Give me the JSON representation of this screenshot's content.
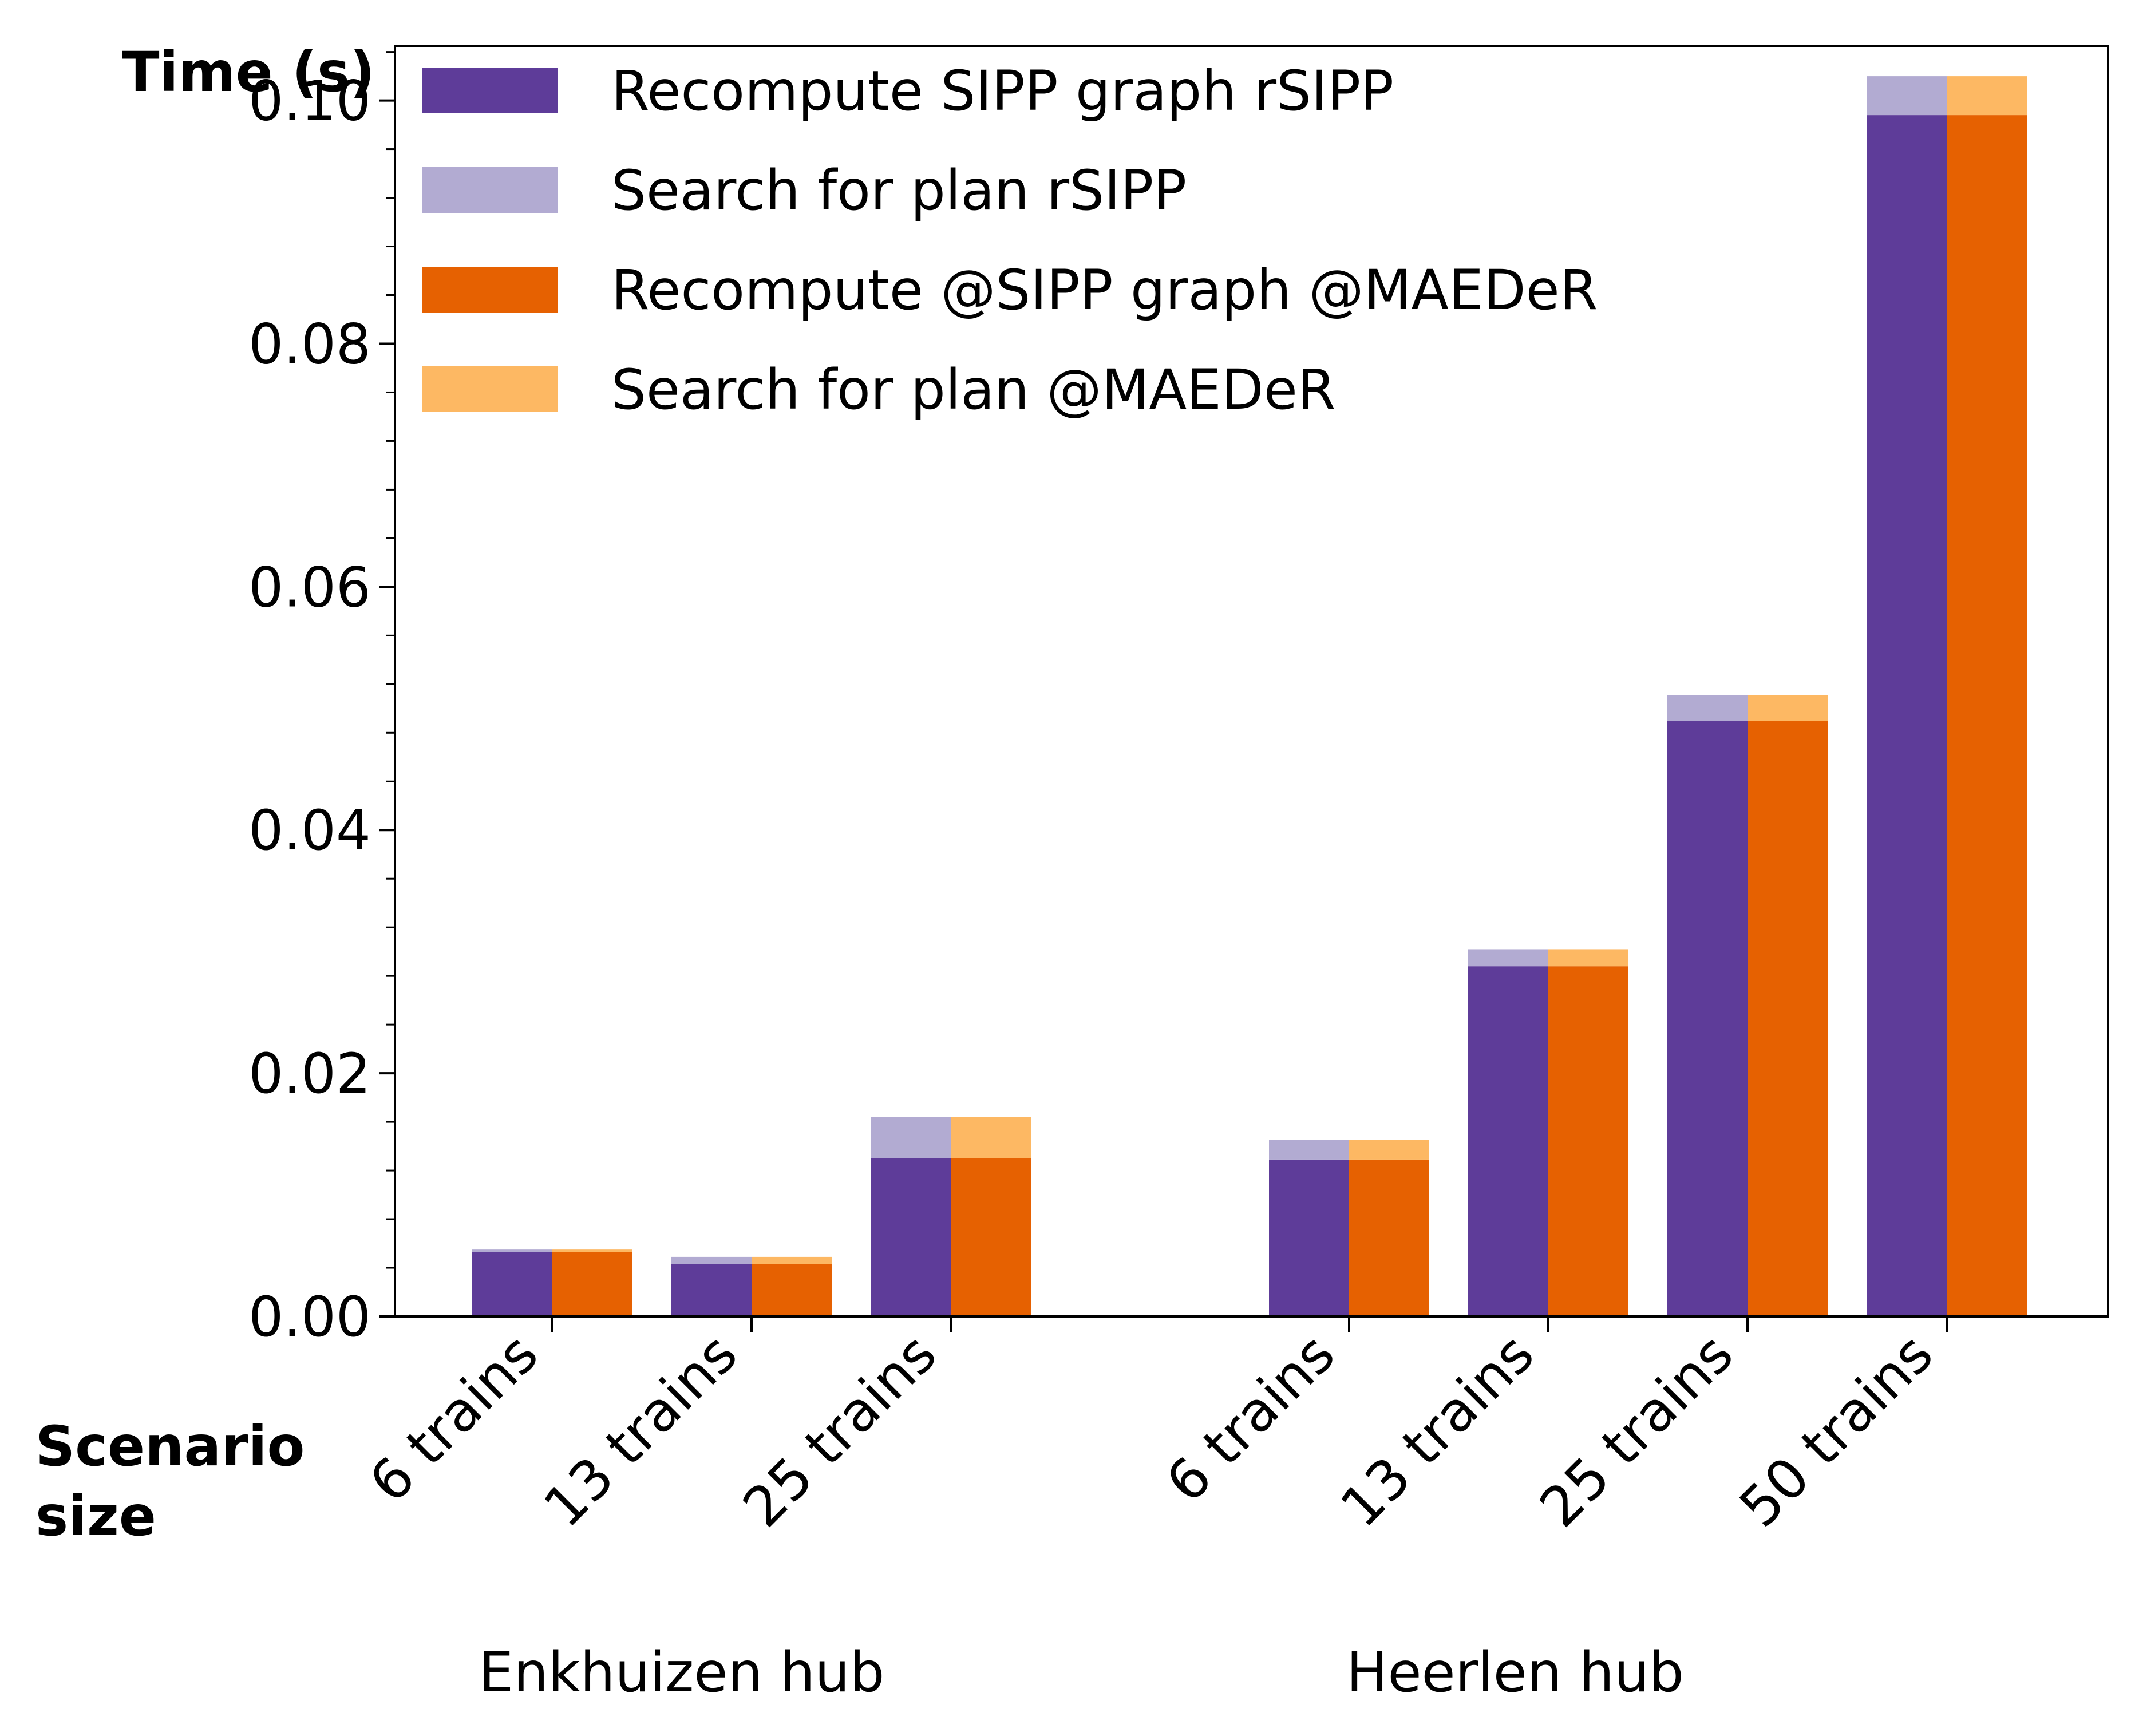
{
  "chart_data": {
    "type": "bar",
    "stacked": true,
    "ylabel": "Time (s)",
    "xlabel": "Scenario\nsize",
    "ylim": [
      0,
      0.1045
    ],
    "yticks": [
      "0.00",
      "0.02",
      "0.04",
      "0.06",
      "0.08",
      "0.10"
    ],
    "legend_position": "top-left",
    "groups": [
      {
        "label": "Enkhuizen hub",
        "categories": [
          "6 trains",
          "13 trains",
          "25 trains"
        ]
      },
      {
        "label": "Heerlen hub",
        "categories": [
          "6 trains",
          "13 trains",
          "25 trains",
          "50 trains"
        ]
      }
    ],
    "series": [
      {
        "name": "Recompute SIPP graph rSIPP",
        "color": "#5e3c99",
        "method": "rSIPP",
        "stack": "recompute",
        "values": [
          0.0053,
          0.0043,
          0.013,
          0.0129,
          0.0288,
          0.049,
          0.0988
        ]
      },
      {
        "name": "Search for plan rSIPP",
        "color": "#b2abd2",
        "method": "rSIPP",
        "stack": "search",
        "values": [
          0.0002,
          0.0006,
          0.0034,
          0.0016,
          0.0014,
          0.0021,
          0.0032
        ]
      },
      {
        "name": "Recompute @SIPP graph @MAEDeR",
        "color": "#e66101",
        "method": "MAEDeR",
        "stack": "recompute",
        "values": [
          0.0053,
          0.0043,
          0.013,
          0.0129,
          0.0288,
          0.049,
          0.0988
        ]
      },
      {
        "name": "Search for plan @MAEDeR",
        "color": "#fdb863",
        "method": "MAEDeR",
        "stack": "search",
        "values": [
          0.0002,
          0.0006,
          0.0034,
          0.0016,
          0.0014,
          0.0021,
          0.0032
        ]
      }
    ]
  }
}
